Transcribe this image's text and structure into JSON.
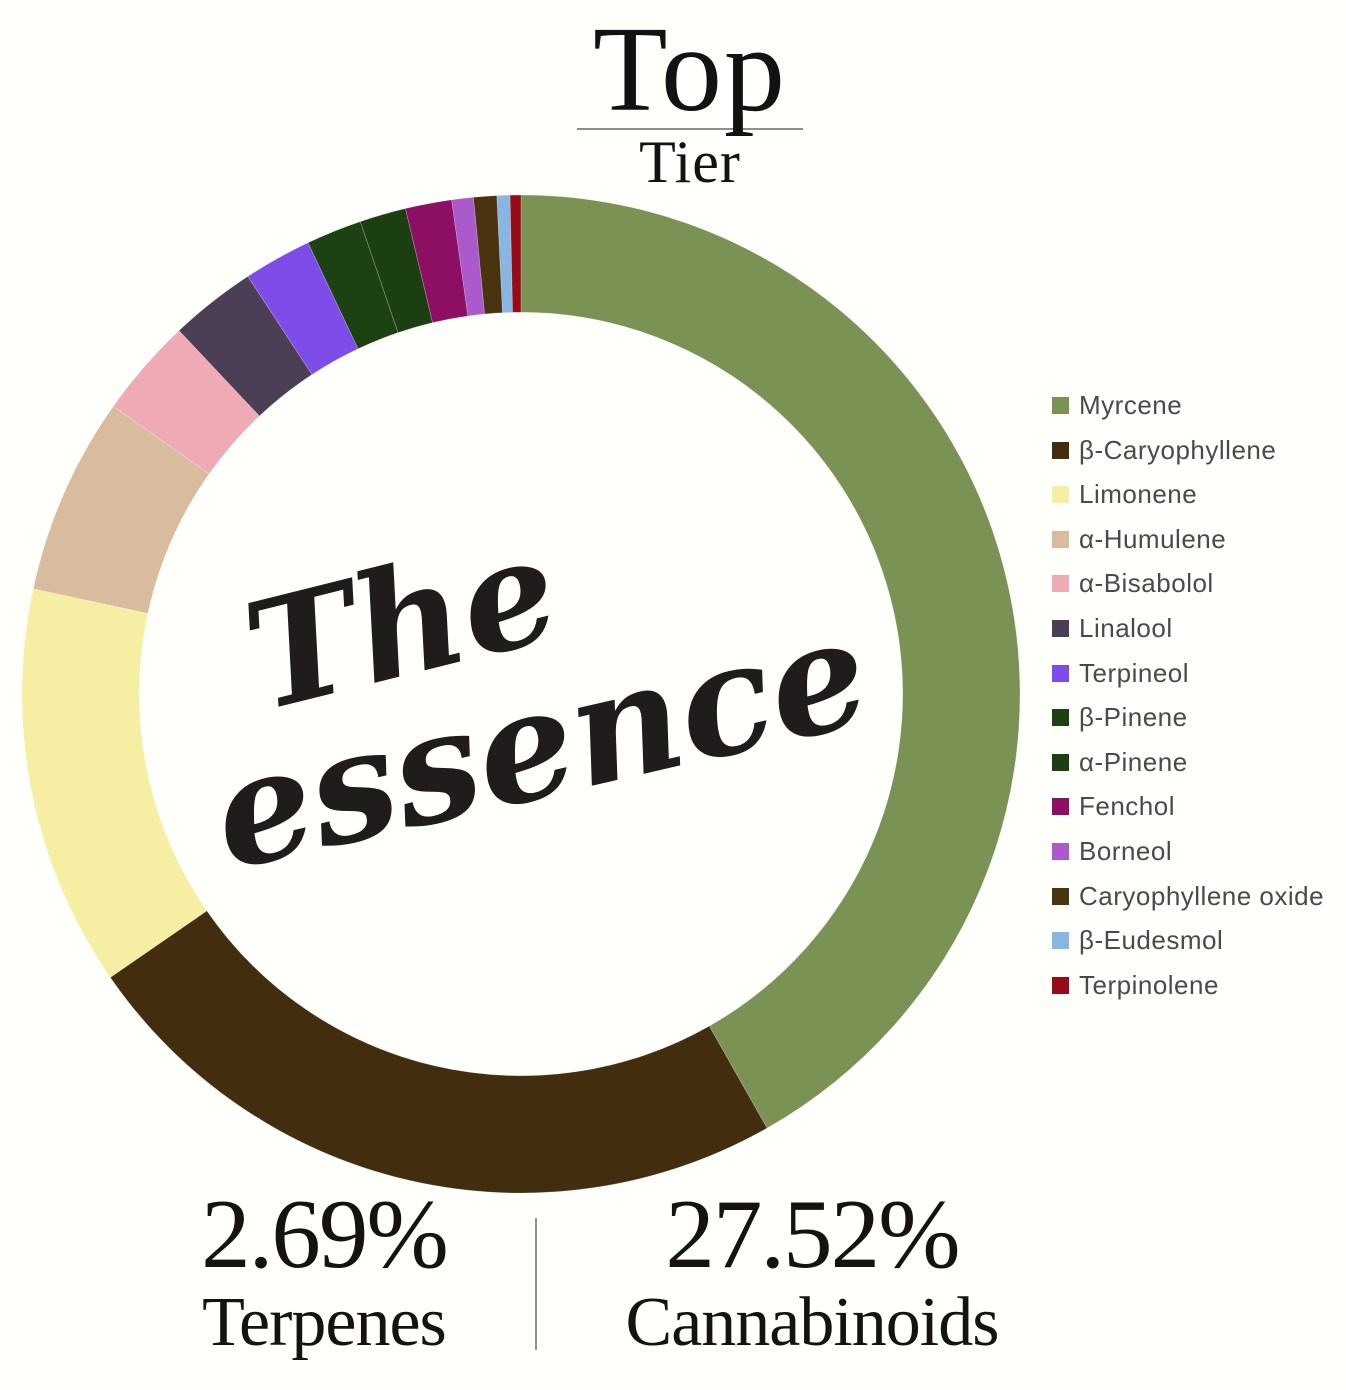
{
  "title": {
    "main": "Top",
    "sub": "Tier"
  },
  "center_logo": {
    "line1": "The",
    "line2": "essence"
  },
  "stats": {
    "terpenes": {
      "value": "2.69%",
      "label": "Terpenes"
    },
    "cannabinoids": {
      "value": "27.52%",
      "label": "Cannabinoids"
    }
  },
  "colors": {
    "background": "#fffffb",
    "title_text": "#121212",
    "legend_text": "#4a4a4a",
    "divider": "#8f8f8f",
    "logo_text": "#211c1c"
  },
  "chart_data": {
    "type": "pie",
    "variant": "donut",
    "title": "Top Tier terpene profile",
    "legend_position": "right",
    "start_angle_deg": 0,
    "direction": "clockwise",
    "inner_radius_ratio": 0.765,
    "totals": {
      "terpenes_pct": 2.69,
      "cannabinoids_pct": 27.52
    },
    "series": [
      {
        "name": "Myrcene",
        "share_pct": 41.8,
        "color": "#7a9355"
      },
      {
        "name": "β-Caryophyllene",
        "share_pct": 23.6,
        "color": "#422d0e"
      },
      {
        "name": "Limonene",
        "share_pct": 13.0,
        "color": "#f6efa3"
      },
      {
        "name": "α-Humulene",
        "share_pct": 6.4,
        "color": "#d9bb9e"
      },
      {
        "name": "α-Bisabolol",
        "share_pct": 3.2,
        "color": "#f0aab6"
      },
      {
        "name": "Linalool",
        "share_pct": 2.8,
        "color": "#4c3e54"
      },
      {
        "name": "Terpineol",
        "share_pct": 2.2,
        "color": "#7d4ce9"
      },
      {
        "name": "β-Pinene",
        "share_pct": 1.8,
        "color": "#1c4112"
      },
      {
        "name": "α-Pinene",
        "share_pct": 1.5,
        "color": "#1b3f10"
      },
      {
        "name": "Fenchol",
        "share_pct": 1.5,
        "color": "#8c0f64"
      },
      {
        "name": "Borneol",
        "share_pct": 0.7,
        "color": "#aa5aca"
      },
      {
        "name": "Caryophyllene oxide",
        "share_pct": 0.75,
        "color": "#4a330f"
      },
      {
        "name": "β-Eudesmol",
        "share_pct": 0.42,
        "color": "#88b6e2"
      },
      {
        "name": "Terpinolene",
        "share_pct": 0.35,
        "color": "#970c16"
      }
    ]
  }
}
